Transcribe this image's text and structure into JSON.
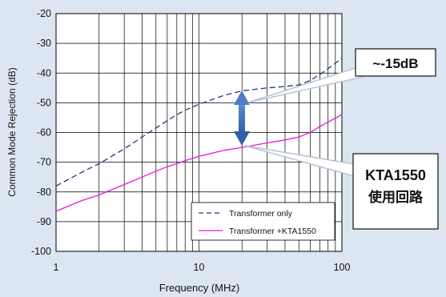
{
  "chart_data": {
    "type": "line",
    "xlabel": "Frequency (MHz)",
    "ylabel": "Common Mode Rejection (dB)",
    "xscale": "log",
    "xlim": [
      1,
      100
    ],
    "ylim": [
      -100,
      -20
    ],
    "x_ticks": [
      1,
      10,
      100
    ],
    "x_tick_labels": [
      "1",
      "10",
      "100"
    ],
    "y_ticks": [
      -20,
      -30,
      -40,
      -50,
      -60,
      -70,
      -80,
      -90,
      -100
    ],
    "y_tick_labels": [
      "-20",
      "-30",
      "-40",
      "-50",
      "-60",
      "-70",
      "-80",
      "-90",
      "-100"
    ],
    "grid": true,
    "legend_position": "bottom-right",
    "series": [
      {
        "name": "Transformer only",
        "color": "#1f3a7a",
        "dash": true,
        "x": [
          1,
          1.5,
          2,
          3,
          4,
          5,
          6,
          7,
          8,
          10,
          15,
          20,
          30,
          40,
          50,
          60,
          70,
          80,
          100
        ],
        "y": [
          -78,
          -73.5,
          -70.5,
          -65.5,
          -61.5,
          -58.5,
          -56,
          -54,
          -52.5,
          -50.5,
          -47.5,
          -46,
          -45,
          -44.5,
          -44,
          -42.5,
          -40.5,
          -38.5,
          -35
        ]
      },
      {
        "name": "Transformer +KTA1550",
        "color": "#e619d6",
        "dash": false,
        "x": [
          1,
          1.5,
          2,
          3,
          4,
          5,
          6,
          7,
          8,
          10,
          15,
          20,
          30,
          40,
          50,
          60,
          70,
          80,
          100
        ],
        "y": [
          -86.5,
          -83,
          -81,
          -77.5,
          -75,
          -73,
          -71.5,
          -70.5,
          -69.5,
          -68,
          -66,
          -65,
          -63.5,
          -62.5,
          -61.5,
          -60,
          -58,
          -56.5,
          -54
        ]
      }
    ],
    "annotations": [
      {
        "text": "~-15dB",
        "arrow_from": [
          20,
          -47
        ],
        "arrow_to": [
          20,
          -65
        ]
      },
      {
        "text": "KTA1550",
        "text2": "使用回路",
        "points_to": [
          20,
          -65
        ]
      }
    ]
  }
}
